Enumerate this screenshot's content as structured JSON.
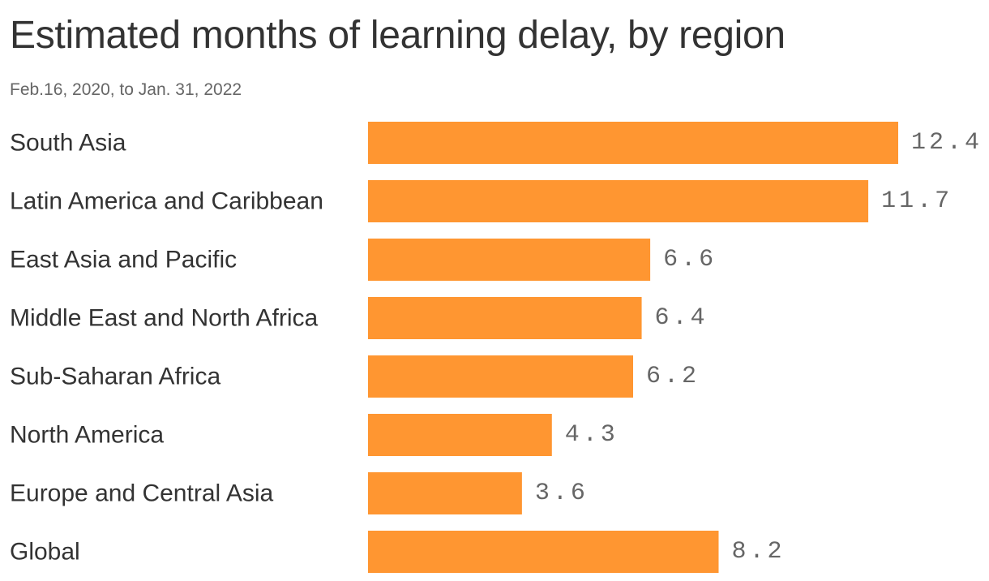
{
  "title": "Estimated months of learning delay, by region",
  "subtitle": "Feb.16, 2020, to Jan. 31, 2022",
  "colors": {
    "bar": "#FF9631",
    "title": "#333333",
    "subtitle": "#666666",
    "value_label": "#666666"
  },
  "chart_data": {
    "type": "bar",
    "orientation": "horizontal",
    "categories": [
      "South Asia",
      "Latin America and Caribbean",
      "East Asia and Pacific",
      "Middle East and North Africa",
      "Sub-Saharan Africa",
      "North America",
      "Europe and Central Asia",
      "Global"
    ],
    "values": [
      12.4,
      11.7,
      6.6,
      6.4,
      6.2,
      4.3,
      3.6,
      8.2
    ],
    "value_labels": [
      "12.4",
      "11.7",
      "6.6",
      "6.4",
      "6.2",
      "4.3",
      "3.6",
      "8.2"
    ],
    "title": "Estimated months of learning delay, by region",
    "subtitle": "Feb.16, 2020, to Jan. 31, 2022",
    "xlabel": "",
    "ylabel": "",
    "xlim": [
      0,
      12.4
    ],
    "grid": false,
    "legend": "none"
  }
}
